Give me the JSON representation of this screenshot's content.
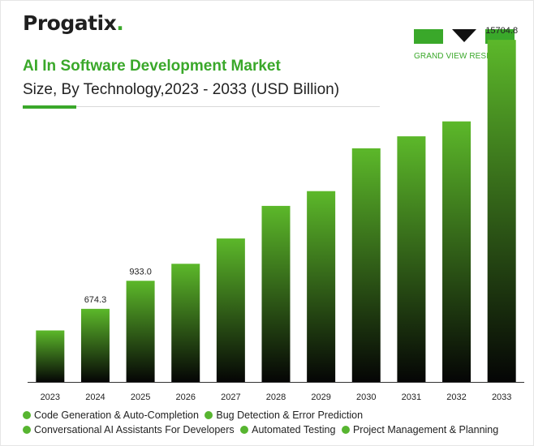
{
  "brand": {
    "name": "Progatix",
    "suffix": "."
  },
  "publisher": {
    "name": "GRAND VIEW RESEARCH"
  },
  "header": {
    "title": "AI In Software Development Market",
    "subtitle": "Size, By Technology,2023 - 2033 (USD Billion)"
  },
  "colors": {
    "accent": "#3aa82a",
    "bar_top": "#5cb82a",
    "bar_bottom": "#050505"
  },
  "chart_data": {
    "type": "bar",
    "title": "AI In Software Development Market",
    "subtitle": "Size, By Technology,2023 - 2033 (USD Billion)",
    "categories": [
      "2023",
      "2024",
      "2025",
      "2026",
      "2027",
      "2028",
      "2029",
      "2030",
      "2031",
      "2032",
      "2033"
    ],
    "values": [
      475,
      674.3,
      933.0,
      1300,
      2080,
      3085,
      3540,
      4860,
      5230,
      5690,
      15704.8
    ],
    "data_labels": [
      "",
      "674.3",
      "933.0",
      "",
      "",
      "",
      "",
      "",
      "",
      "",
      "15704.8"
    ],
    "scale": [
      {
        "from": 0,
        "to": 1000,
        "px_per_unit": 0.1337
      },
      {
        "from": 1000,
        "to": 7000,
        "px_per_unit": 0.04
      },
      {
        "from": 7000,
        "to": 15704.8,
        "px_per_unit": 0.00553
      }
    ],
    "xlabel": "",
    "ylabel": "",
    "grid": false,
    "legend_position": "bottom",
    "legend": [
      "Code Generation & Auto-Completion",
      "Bug Detection & Error Prediction",
      "Conversational AI Assistants For Developers",
      "Automated Testing",
      "Project Management & Planning"
    ]
  }
}
